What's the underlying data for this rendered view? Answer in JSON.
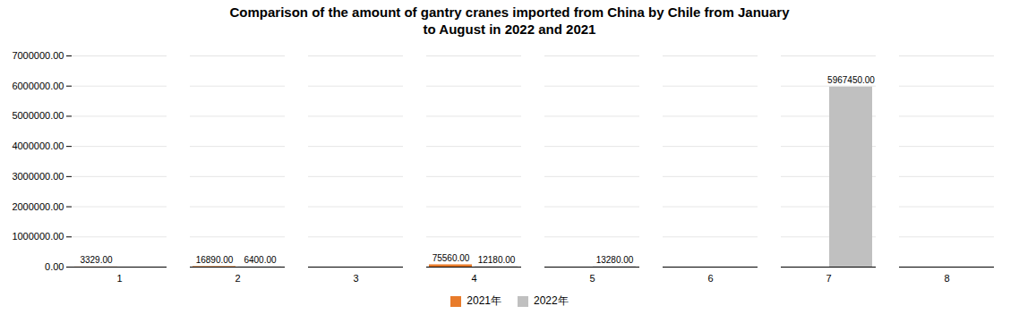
{
  "chart_data": {
    "type": "bar",
    "title": "Comparison of the amount of gantry cranes imported from China by Chile from January\nto August in 2022 and 2021",
    "categories": [
      "1",
      "2",
      "3",
      "4",
      "5",
      "6",
      "7",
      "8"
    ],
    "series": [
      {
        "name": "2021年",
        "color": "#E87B2A",
        "values": [
          3329.0,
          16890.0,
          0,
          75560.0,
          0,
          0,
          0,
          0
        ],
        "value_labels": [
          "3329.00",
          "16890.00",
          null,
          "75560.00",
          null,
          null,
          null,
          null
        ]
      },
      {
        "name": "2022年",
        "color": "#C0C0C0",
        "values": [
          0,
          6400.0,
          0,
          12180.0,
          13280.0,
          0,
          5967450.0,
          0
        ],
        "value_labels": [
          null,
          "6400.00",
          null,
          "12180.00",
          "13280.00",
          null,
          "5967450.00",
          null
        ]
      }
    ],
    "ylim": [
      0,
      7000000
    ],
    "yticks": [
      {
        "value": 0,
        "label": "0.00"
      },
      {
        "value": 1000000,
        "label": "1000000.00"
      },
      {
        "value": 2000000,
        "label": "2000000.00"
      },
      {
        "value": 3000000,
        "label": "3000000.00"
      },
      {
        "value": 4000000,
        "label": "4000000.00"
      },
      {
        "value": 5000000,
        "label": "5000000.00"
      },
      {
        "value": 6000000,
        "label": "6000000.00"
      },
      {
        "value": 7000000,
        "label": "7000000.00"
      }
    ],
    "grid": true,
    "legend": "bottom",
    "data_labels": true
  }
}
